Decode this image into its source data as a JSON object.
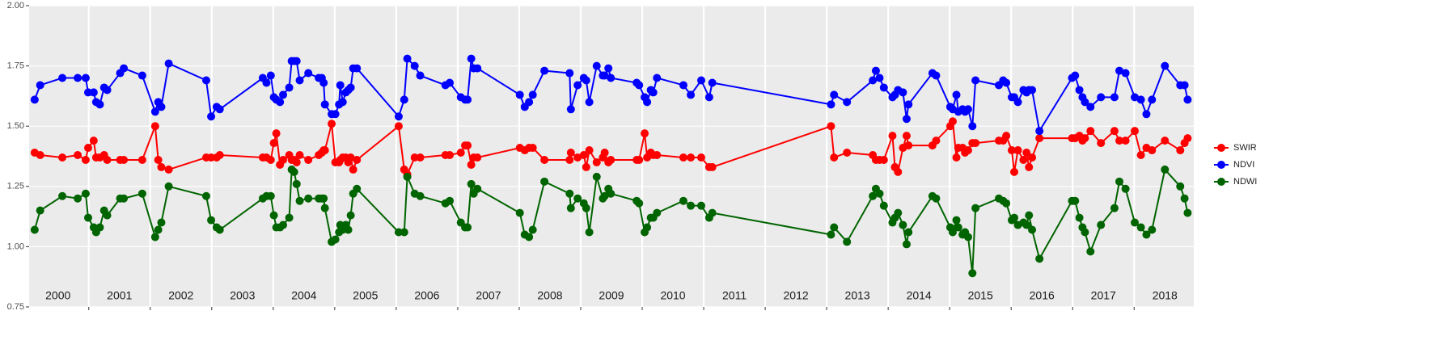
{
  "chart_data": {
    "type": "line",
    "x": [
      2000.12,
      2000.21,
      2000.57,
      2000.82,
      2000.95,
      2000.99,
      2001.08,
      2001.12,
      2001.18,
      2001.25,
      2001.3,
      2001.51,
      2001.57,
      2001.87,
      2002.08,
      2002.13,
      2002.18,
      2002.3,
      2002.91,
      2002.99,
      2003.08,
      2003.13,
      2003.83,
      2003.89,
      2003.96,
      2004.01,
      2004.05,
      2004.11,
      2004.16,
      2004.26,
      2004.3,
      2004.34,
      2004.38,
      2004.43,
      2004.57,
      2004.74,
      2004.79,
      2004.82,
      2004.84,
      2004.95,
      2005.01,
      2005.07,
      2005.09,
      2005.13,
      2005.18,
      2005.22,
      2005.26,
      2005.3,
      2005.36,
      2006.04,
      2006.13,
      2006.18,
      2006.3,
      2006.39,
      2006.8,
      2006.87,
      2007.05,
      2007.12,
      2007.16,
      2007.22,
      2007.26,
      2007.32,
      2008.01,
      2008.09,
      2008.16,
      2008.22,
      2008.41,
      2008.82,
      2008.84,
      2008.95,
      2009.05,
      2009.09,
      2009.14,
      2009.26,
      2009.36,
      2009.39,
      2009.45,
      2009.49,
      2009.91,
      2009.95,
      2010.04,
      2010.08,
      2010.14,
      2010.18,
      2010.24,
      2010.67,
      2010.79,
      2010.96,
      2011.09,
      2011.14,
      2013.07,
      2013.12,
      2013.33,
      2013.75,
      2013.8,
      2013.86,
      2013.93,
      2014.07,
      2014.11,
      2014.16,
      2014.24,
      2014.3,
      2014.33,
      2014.72,
      2014.78,
      2015.01,
      2015.05,
      2015.11,
      2015.14,
      2015.21,
      2015.25,
      2015.3,
      2015.37,
      2015.42,
      2015.8,
      2015.87,
      2015.92,
      2016.01,
      2016.05,
      2016.11,
      2016.2,
      2016.25,
      2016.29,
      2016.34,
      2016.46,
      2016.99,
      2017.04,
      2017.11,
      2017.16,
      2017.2,
      2017.29,
      2017.46,
      2017.68,
      2017.76,
      2017.86,
      2018.01,
      2018.11,
      2018.2,
      2018.29,
      2018.5,
      2018.75,
      2018.82,
      2018.87
    ],
    "series": [
      {
        "name": "SWIR",
        "color": "#ff0000",
        "values": [
          1.39,
          1.38,
          1.37,
          1.38,
          1.36,
          1.41,
          1.44,
          1.37,
          1.37,
          1.38,
          1.36,
          1.36,
          1.36,
          1.36,
          1.5,
          1.36,
          1.33,
          1.32,
          1.37,
          1.37,
          1.37,
          1.38,
          1.37,
          1.37,
          1.36,
          1.43,
          1.47,
          1.34,
          1.36,
          1.38,
          1.36,
          1.36,
          1.35,
          1.38,
          1.36,
          1.38,
          1.39,
          1.4,
          1.4,
          1.51,
          1.35,
          1.35,
          1.36,
          1.37,
          1.37,
          1.35,
          1.37,
          1.32,
          1.36,
          1.5,
          1.32,
          1.3,
          1.37,
          1.37,
          1.38,
          1.38,
          1.39,
          1.42,
          1.42,
          1.34,
          1.37,
          1.37,
          1.41,
          1.4,
          1.41,
          1.41,
          1.36,
          1.36,
          1.39,
          1.37,
          1.38,
          1.33,
          1.4,
          1.35,
          1.37,
          1.39,
          1.35,
          1.36,
          1.36,
          1.36,
          1.47,
          1.37,
          1.39,
          1.38,
          1.38,
          1.37,
          1.37,
          1.37,
          1.33,
          1.33,
          1.5,
          1.37,
          1.39,
          1.38,
          1.36,
          1.36,
          1.36,
          1.46,
          1.33,
          1.31,
          1.41,
          1.46,
          1.42,
          1.42,
          1.44,
          1.5,
          1.52,
          1.37,
          1.41,
          1.41,
          1.39,
          1.4,
          1.43,
          1.43,
          1.44,
          1.44,
          1.46,
          1.4,
          1.31,
          1.4,
          1.36,
          1.39,
          1.33,
          1.37,
          1.45,
          1.45,
          1.45,
          1.46,
          1.44,
          1.45,
          1.48,
          1.43,
          1.48,
          1.44,
          1.44,
          1.48,
          1.38,
          1.41,
          1.4,
          1.44,
          1.4,
          1.43,
          1.45
        ]
      },
      {
        "name": "NDVI",
        "color": "#0000ff",
        "values": [
          1.61,
          1.67,
          1.7,
          1.7,
          1.7,
          1.64,
          1.64,
          1.6,
          1.59,
          1.66,
          1.65,
          1.72,
          1.74,
          1.71,
          1.56,
          1.6,
          1.58,
          1.76,
          1.69,
          1.54,
          1.58,
          1.57,
          1.7,
          1.68,
          1.71,
          1.62,
          1.61,
          1.6,
          1.63,
          1.66,
          1.77,
          1.77,
          1.77,
          1.69,
          1.72,
          1.7,
          1.7,
          1.68,
          1.59,
          1.55,
          1.55,
          1.59,
          1.67,
          1.6,
          1.64,
          1.65,
          1.66,
          1.74,
          1.74,
          1.54,
          1.61,
          1.78,
          1.75,
          1.71,
          1.67,
          1.68,
          1.62,
          1.61,
          1.61,
          1.78,
          1.74,
          1.74,
          1.63,
          1.58,
          1.6,
          1.63,
          1.73,
          1.72,
          1.57,
          1.67,
          1.7,
          1.69,
          1.6,
          1.75,
          1.71,
          1.71,
          1.74,
          1.7,
          1.68,
          1.67,
          1.62,
          1.6,
          1.65,
          1.64,
          1.7,
          1.67,
          1.63,
          1.69,
          1.62,
          1.68,
          1.59,
          1.63,
          1.6,
          1.69,
          1.73,
          1.7,
          1.66,
          1.62,
          1.63,
          1.65,
          1.64,
          1.53,
          1.59,
          1.72,
          1.71,
          1.58,
          1.57,
          1.63,
          1.56,
          1.57,
          1.56,
          1.57,
          1.5,
          1.69,
          1.67,
          1.69,
          1.68,
          1.62,
          1.62,
          1.6,
          1.65,
          1.64,
          1.65,
          1.65,
          1.48,
          1.7,
          1.71,
          1.65,
          1.62,
          1.6,
          1.58,
          1.62,
          1.62,
          1.73,
          1.72,
          1.62,
          1.61,
          1.55,
          1.61,
          1.75,
          1.67,
          1.67,
          1.61
        ]
      },
      {
        "name": "NDWI",
        "color": "#006400",
        "values": [
          1.07,
          1.15,
          1.21,
          1.2,
          1.22,
          1.12,
          1.08,
          1.06,
          1.08,
          1.15,
          1.13,
          1.2,
          1.2,
          1.22,
          1.04,
          1.07,
          1.1,
          1.25,
          1.21,
          1.11,
          1.08,
          1.07,
          1.2,
          1.21,
          1.21,
          1.13,
          1.08,
          1.08,
          1.09,
          1.12,
          1.32,
          1.31,
          1.26,
          1.19,
          1.2,
          1.2,
          1.2,
          1.2,
          1.16,
          1.02,
          1.03,
          1.06,
          1.09,
          1.07,
          1.09,
          1.07,
          1.13,
          1.22,
          1.24,
          1.06,
          1.06,
          1.29,
          1.22,
          1.21,
          1.18,
          1.19,
          1.1,
          1.08,
          1.08,
          1.26,
          1.22,
          1.24,
          1.14,
          1.05,
          1.04,
          1.07,
          1.27,
          1.22,
          1.16,
          1.2,
          1.18,
          1.16,
          1.06,
          1.29,
          1.2,
          1.21,
          1.24,
          1.22,
          1.19,
          1.18,
          1.06,
          1.08,
          1.12,
          1.12,
          1.14,
          1.19,
          1.17,
          1.17,
          1.12,
          1.14,
          1.05,
          1.08,
          1.02,
          1.21,
          1.24,
          1.22,
          1.17,
          1.1,
          1.12,
          1.14,
          1.09,
          1.01,
          1.06,
          1.21,
          1.2,
          1.08,
          1.06,
          1.11,
          1.08,
          1.05,
          1.06,
          1.04,
          0.89,
          1.16,
          1.2,
          1.19,
          1.18,
          1.11,
          1.12,
          1.09,
          1.1,
          1.09,
          1.13,
          1.07,
          0.95,
          1.19,
          1.19,
          1.12,
          1.08,
          1.06,
          0.98,
          1.09,
          1.16,
          1.27,
          1.24,
          1.1,
          1.08,
          1.05,
          1.07,
          1.32,
          1.25,
          1.2,
          1.14
        ]
      }
    ],
    "year_labels": [
      2000,
      2001,
      2002,
      2003,
      2004,
      2005,
      2006,
      2007,
      2008,
      2009,
      2010,
      2011,
      2012,
      2013,
      2014,
      2015,
      2016,
      2017,
      2018
    ],
    "xlim": [
      2000.03,
      2018.97
    ],
    "xticks": [
      2001,
      2002,
      2003,
      2004,
      2005,
      2006,
      2007,
      2008,
      2009,
      2010,
      2011,
      2012,
      2013,
      2014,
      2015,
      2016,
      2017,
      2018
    ],
    "ylim": [
      0.75,
      2.0
    ],
    "yticks": [
      0.75,
      {
        "value": 1,
        "label": "1.00"
      },
      1.25,
      {
        "value": 1.5,
        "label": "1.50"
      },
      1.75,
      {
        "value": 2,
        "label": "2.00"
      }
    ],
    "grid": true,
    "legend": "right"
  }
}
